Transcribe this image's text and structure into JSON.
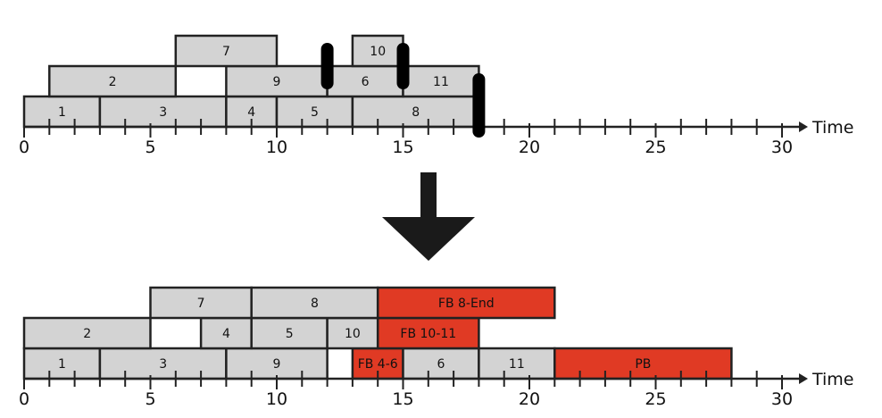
{
  "axis_label": "Time",
  "ticks": [
    "0",
    "5",
    "10",
    "15",
    "20",
    "25",
    "30"
  ],
  "colors": {
    "block": "#d3d3d3",
    "highlight": "#e03a24",
    "stroke": "#222222",
    "marker": "#000000"
  },
  "top": {
    "blocks": [
      {
        "label": "1",
        "start": 0,
        "end": 3,
        "row": 0,
        "highlight": false
      },
      {
        "label": "3",
        "start": 3,
        "end": 8,
        "row": 0,
        "highlight": false
      },
      {
        "label": "4",
        "start": 8,
        "end": 10,
        "row": 0,
        "highlight": false
      },
      {
        "label": "5",
        "start": 10,
        "end": 13,
        "row": 0,
        "highlight": false
      },
      {
        "label": "8",
        "start": 13,
        "end": 18,
        "row": 0,
        "highlight": false
      },
      {
        "label": "2",
        "start": 1,
        "end": 6,
        "row": 1,
        "highlight": false
      },
      {
        "label": "9",
        "start": 8,
        "end": 12,
        "row": 1,
        "highlight": false
      },
      {
        "label": "6",
        "start": 12,
        "end": 15,
        "row": 1,
        "highlight": false
      },
      {
        "label": "11",
        "start": 15,
        "end": 18,
        "row": 1,
        "highlight": false
      },
      {
        "label": "7",
        "start": 6,
        "end": 10,
        "row": 2,
        "highlight": false
      },
      {
        "label": "10",
        "start": 13,
        "end": 15,
        "row": 2,
        "highlight": false
      }
    ],
    "markers": [
      {
        "at": 12,
        "rows": [
          1,
          2
        ]
      },
      {
        "at": 15,
        "rows": [
          1,
          2
        ]
      },
      {
        "at": 18,
        "rows": [
          0,
          1
        ]
      }
    ]
  },
  "bottom": {
    "blocks": [
      {
        "label": "1",
        "start": 0,
        "end": 3,
        "row": 0,
        "highlight": false
      },
      {
        "label": "3",
        "start": 3,
        "end": 8,
        "row": 0,
        "highlight": false
      },
      {
        "label": "9",
        "start": 8,
        "end": 12,
        "row": 0,
        "highlight": false
      },
      {
        "label": "FB 4-6",
        "start": 13,
        "end": 15,
        "row": 0,
        "highlight": true
      },
      {
        "label": "6",
        "start": 15,
        "end": 18,
        "row": 0,
        "highlight": false
      },
      {
        "label": "11",
        "start": 18,
        "end": 21,
        "row": 0,
        "highlight": false
      },
      {
        "label": "PB",
        "start": 21,
        "end": 28,
        "row": 0,
        "highlight": true
      },
      {
        "label": "2",
        "start": 0,
        "end": 5,
        "row": 1,
        "highlight": false
      },
      {
        "label": "4",
        "start": 7,
        "end": 9,
        "row": 1,
        "highlight": false
      },
      {
        "label": "5",
        "start": 9,
        "end": 12,
        "row": 1,
        "highlight": false
      },
      {
        "label": "10",
        "start": 12,
        "end": 14,
        "row": 1,
        "highlight": false
      },
      {
        "label": "FB 10-11",
        "start": 14,
        "end": 18,
        "row": 1,
        "highlight": true
      },
      {
        "label": "7",
        "start": 5,
        "end": 9,
        "row": 2,
        "highlight": false
      },
      {
        "label": "8",
        "start": 9,
        "end": 14,
        "row": 2,
        "highlight": false
      },
      {
        "label": "FB 8-End",
        "start": 14,
        "end": 21,
        "row": 2,
        "highlight": true
      }
    ],
    "markers": []
  }
}
